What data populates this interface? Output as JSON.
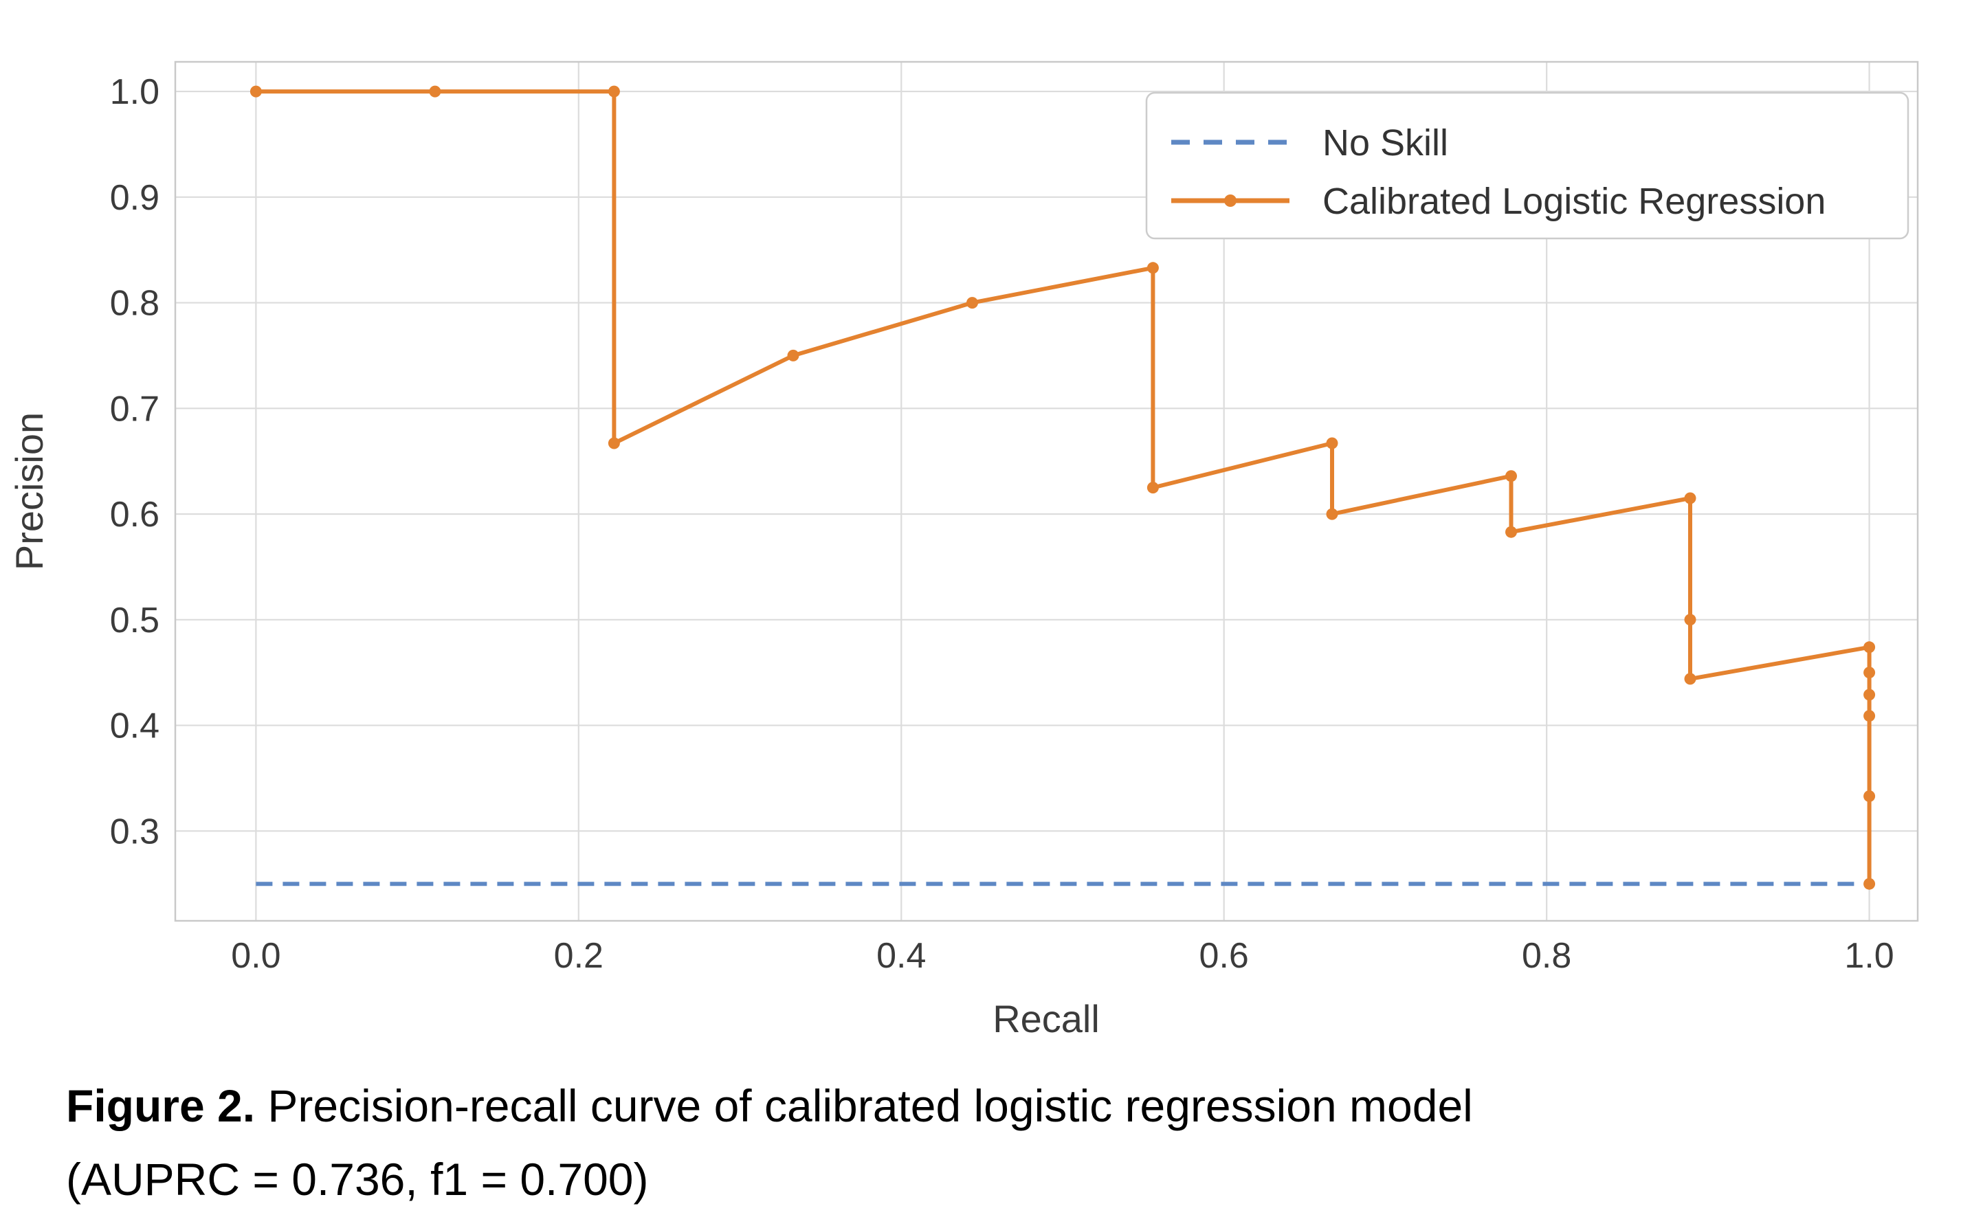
{
  "caption": {
    "label": "Figure 2.",
    "text": " Precision-recall curve of calibrated logistic regression model",
    "line2": "(AUPRC = 0.736, f1 = 0.700)"
  },
  "legend": {
    "entries": [
      {
        "label": "No Skill"
      },
      {
        "label": "Calibrated Logistic Regression"
      }
    ]
  },
  "colors": {
    "no_skill_blue": "#5E88C4",
    "curve_orange": "#E4822F",
    "grid": "#DCDCDC",
    "spine": "#C9C9C9",
    "tick_text": "#3b3b3b",
    "legend_border": "#CCCCCC",
    "background": "#FFFFFF"
  },
  "chart_data": {
    "type": "line",
    "title": "",
    "xlabel": "Recall",
    "ylabel": "Precision",
    "xlim": [
      -0.05,
      1.03
    ],
    "ylim": [
      0.215,
      1.028
    ],
    "grid": true,
    "legend_position": "upper right",
    "xticks": [
      0.0,
      0.2,
      0.4,
      0.6,
      0.8,
      1.0
    ],
    "xtick_labels": [
      "0.0",
      "0.2",
      "0.4",
      "0.6",
      "0.8",
      "1.0"
    ],
    "yticks": [
      0.3,
      0.4,
      0.5,
      0.6,
      0.7,
      0.8,
      0.9,
      1.0
    ],
    "ytick_labels": [
      "0.3",
      "0.4",
      "0.5",
      "0.6",
      "0.7",
      "0.8",
      "0.9",
      "1.0"
    ],
    "series": [
      {
        "name": "No Skill",
        "style": "dashed",
        "markers": false,
        "color": "#5E88C4",
        "points": [
          [
            0.0,
            0.25
          ],
          [
            1.0,
            0.25
          ]
        ]
      },
      {
        "name": "Calibrated Logistic Regression",
        "style": "solid",
        "markers": true,
        "color": "#E4822F",
        "points": [
          [
            0.0,
            1.0
          ],
          [
            0.111,
            1.0
          ],
          [
            0.222,
            1.0
          ],
          [
            0.222,
            0.667
          ],
          [
            0.333,
            0.75
          ],
          [
            0.444,
            0.8
          ],
          [
            0.556,
            0.833
          ],
          [
            0.556,
            0.625
          ],
          [
            0.667,
            0.667
          ],
          [
            0.667,
            0.6
          ],
          [
            0.778,
            0.636
          ],
          [
            0.778,
            0.583
          ],
          [
            0.889,
            0.615
          ],
          [
            0.889,
            0.5
          ],
          [
            0.889,
            0.444
          ],
          [
            1.0,
            0.474
          ],
          [
            1.0,
            0.45
          ],
          [
            1.0,
            0.429
          ],
          [
            1.0,
            0.409
          ],
          [
            1.0,
            0.333
          ],
          [
            1.0,
            0.25
          ]
        ]
      }
    ]
  }
}
